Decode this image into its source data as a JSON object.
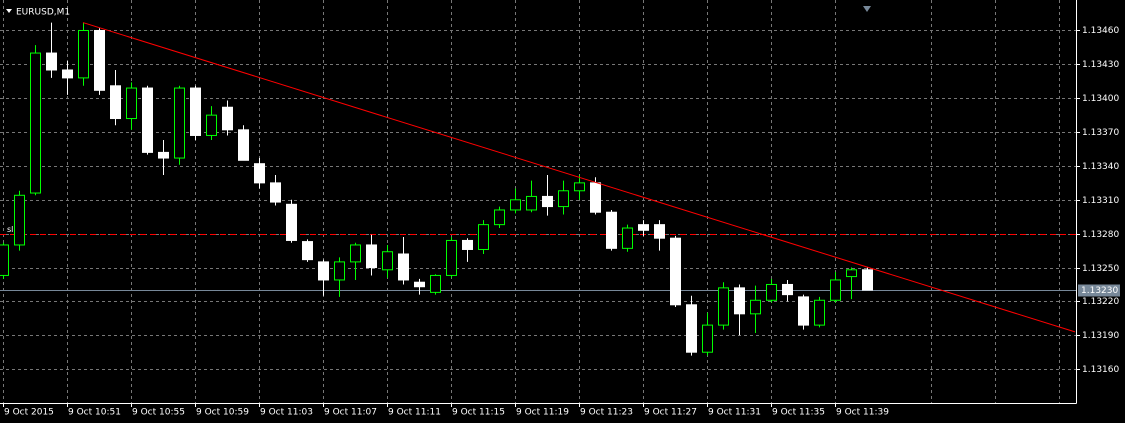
{
  "chart_data": {
    "type": "candlestick",
    "title": "EURUSD,M1",
    "categories": [
      "9 Oct 2015",
      null,
      null,
      null,
      "9 Oct 10:51",
      null,
      null,
      null,
      "9 Oct 10:55",
      null,
      null,
      null,
      "9 Oct 10:59",
      null,
      null,
      null,
      "9 Oct 11:03",
      null,
      null,
      null,
      "9 Oct 11:07",
      null,
      null,
      null,
      "9 Oct 11:11",
      null,
      null,
      null,
      "9 Oct 11:15",
      null,
      null,
      null,
      "9 Oct 11:19",
      null,
      null,
      null,
      "9 Oct 11:23",
      null,
      null,
      null,
      "9 Oct 11:27",
      null,
      null,
      null,
      "9 Oct 11:31",
      null,
      null,
      null,
      "9 Oct 11:35",
      null,
      null,
      null,
      "9 Oct 11:39",
      null,
      null
    ],
    "open": [
      1.13243,
      1.1327,
      1.13316,
      1.1344,
      1.13425,
      1.13418,
      1.1346,
      1.13411,
      1.13382,
      1.13409,
      1.13352,
      1.13347,
      1.13409,
      1.13367,
      1.13392,
      1.13372,
      1.13342,
      1.13325,
      1.13306,
      1.13273,
      1.13255,
      1.13239,
      1.13255,
      1.1327,
      1.13248,
      1.13262,
      1.13237,
      1.13228,
      1.13243,
      1.13274,
      1.13266,
      1.13288,
      1.13301,
      1.13301,
      1.13313,
      1.13304,
      1.13318,
      1.13325,
      1.13299,
      1.13267,
      1.13288,
      1.13288,
      1.13276,
      1.13217,
      1.13175,
      1.13199,
      1.13232,
      1.13209,
      1.13221,
      1.13235,
      1.13224,
      1.13199,
      1.13221,
      1.13242,
      1.13248
    ],
    "high": [
      1.13272,
      1.13318,
      1.13447,
      1.13467,
      1.13433,
      1.13467,
      1.13462,
      1.13425,
      1.13414,
      1.13411,
      1.13363,
      1.13411,
      1.13411,
      1.13393,
      1.13398,
      1.13376,
      1.13347,
      1.13332,
      1.1331,
      1.13275,
      1.13257,
      1.13259,
      1.13272,
      1.13279,
      1.1327,
      1.13277,
      1.1324,
      1.13244,
      1.13277,
      1.13276,
      1.13292,
      1.13304,
      1.1332,
      1.13327,
      1.13332,
      1.13327,
      1.13332,
      1.1333,
      1.13301,
      1.13288,
      1.13292,
      1.13292,
      1.13278,
      1.13225,
      1.1321,
      1.13237,
      1.13235,
      1.13234,
      1.1324,
      1.13239,
      1.13226,
      1.13224,
      1.13246,
      1.1325,
      1.1325
    ],
    "low": [
      1.1324,
      1.13265,
      1.13314,
      1.13418,
      1.13403,
      1.13411,
      1.13403,
      1.13376,
      1.13372,
      1.1335,
      1.13332,
      1.13341,
      1.13363,
      1.13363,
      1.13367,
      1.13345,
      1.1332,
      1.13305,
      1.13272,
      1.13255,
      1.13225,
      1.13224,
      1.13239,
      1.13243,
      1.13241,
      1.13235,
      1.13226,
      1.13226,
      1.13241,
      1.13255,
      1.13262,
      1.13285,
      1.13298,
      1.13299,
      1.13296,
      1.13297,
      1.1331,
      1.13297,
      1.13265,
      1.13264,
      1.13278,
      1.13265,
      1.13215,
      1.13172,
      1.13172,
      1.13195,
      1.1319,
      1.13192,
      1.13219,
      1.1322,
      1.13195,
      1.13197,
      1.13219,
      1.13222,
      1.1323
    ],
    "close": [
      1.1327,
      1.13314,
      1.1344,
      1.13425,
      1.13418,
      1.1346,
      1.13407,
      1.13382,
      1.13409,
      1.13352,
      1.13347,
      1.13409,
      1.13367,
      1.13385,
      1.13372,
      1.13345,
      1.13325,
      1.13308,
      1.13274,
      1.13257,
      1.13239,
      1.13255,
      1.1327,
      1.1325,
      1.13264,
      1.13239,
      1.13233,
      1.13243,
      1.13274,
      1.13266,
      1.13288,
      1.13301,
      1.1331,
      1.13313,
      1.13304,
      1.13318,
      1.13325,
      1.13299,
      1.13267,
      1.13285,
      1.13283,
      1.13276,
      1.13217,
      1.13175,
      1.13199,
      1.13232,
      1.13209,
      1.13221,
      1.13235,
      1.13226,
      1.13199,
      1.13221,
      1.13239,
      1.13248,
      1.1323
    ],
    "up_color": "#00ff00",
    "down_color": "#ffffff",
    "ylim": [
      1.1313,
      1.13487
    ],
    "yticks": [
      {
        "value": 1.1346,
        "label": "1.13460"
      },
      {
        "value": 1.1343,
        "label": "1.13430"
      },
      {
        "value": 1.134,
        "label": "1.13400"
      },
      {
        "value": 1.1337,
        "label": "1.13370"
      },
      {
        "value": 1.1334,
        "label": "1.13340"
      },
      {
        "value": 1.1331,
        "label": "1.13310"
      },
      {
        "value": 1.1328,
        "label": "1.13280"
      },
      {
        "value": 1.1325,
        "label": "1.13250"
      },
      {
        "value": 1.1322,
        "label": "1.13220"
      },
      {
        "value": 1.1319,
        "label": "1.13190"
      },
      {
        "value": 1.1316,
        "label": "1.13160"
      }
    ],
    "grid": true,
    "bid": {
      "value": 1.1323,
      "label": "1.13230"
    },
    "stop_level": {
      "value": 1.1328,
      "label": "sl"
    },
    "trendline": {
      "x": [
        5,
        67
      ],
      "y": [
        1.13467,
        1.13193
      ],
      "color": "#ff0000"
    }
  }
}
